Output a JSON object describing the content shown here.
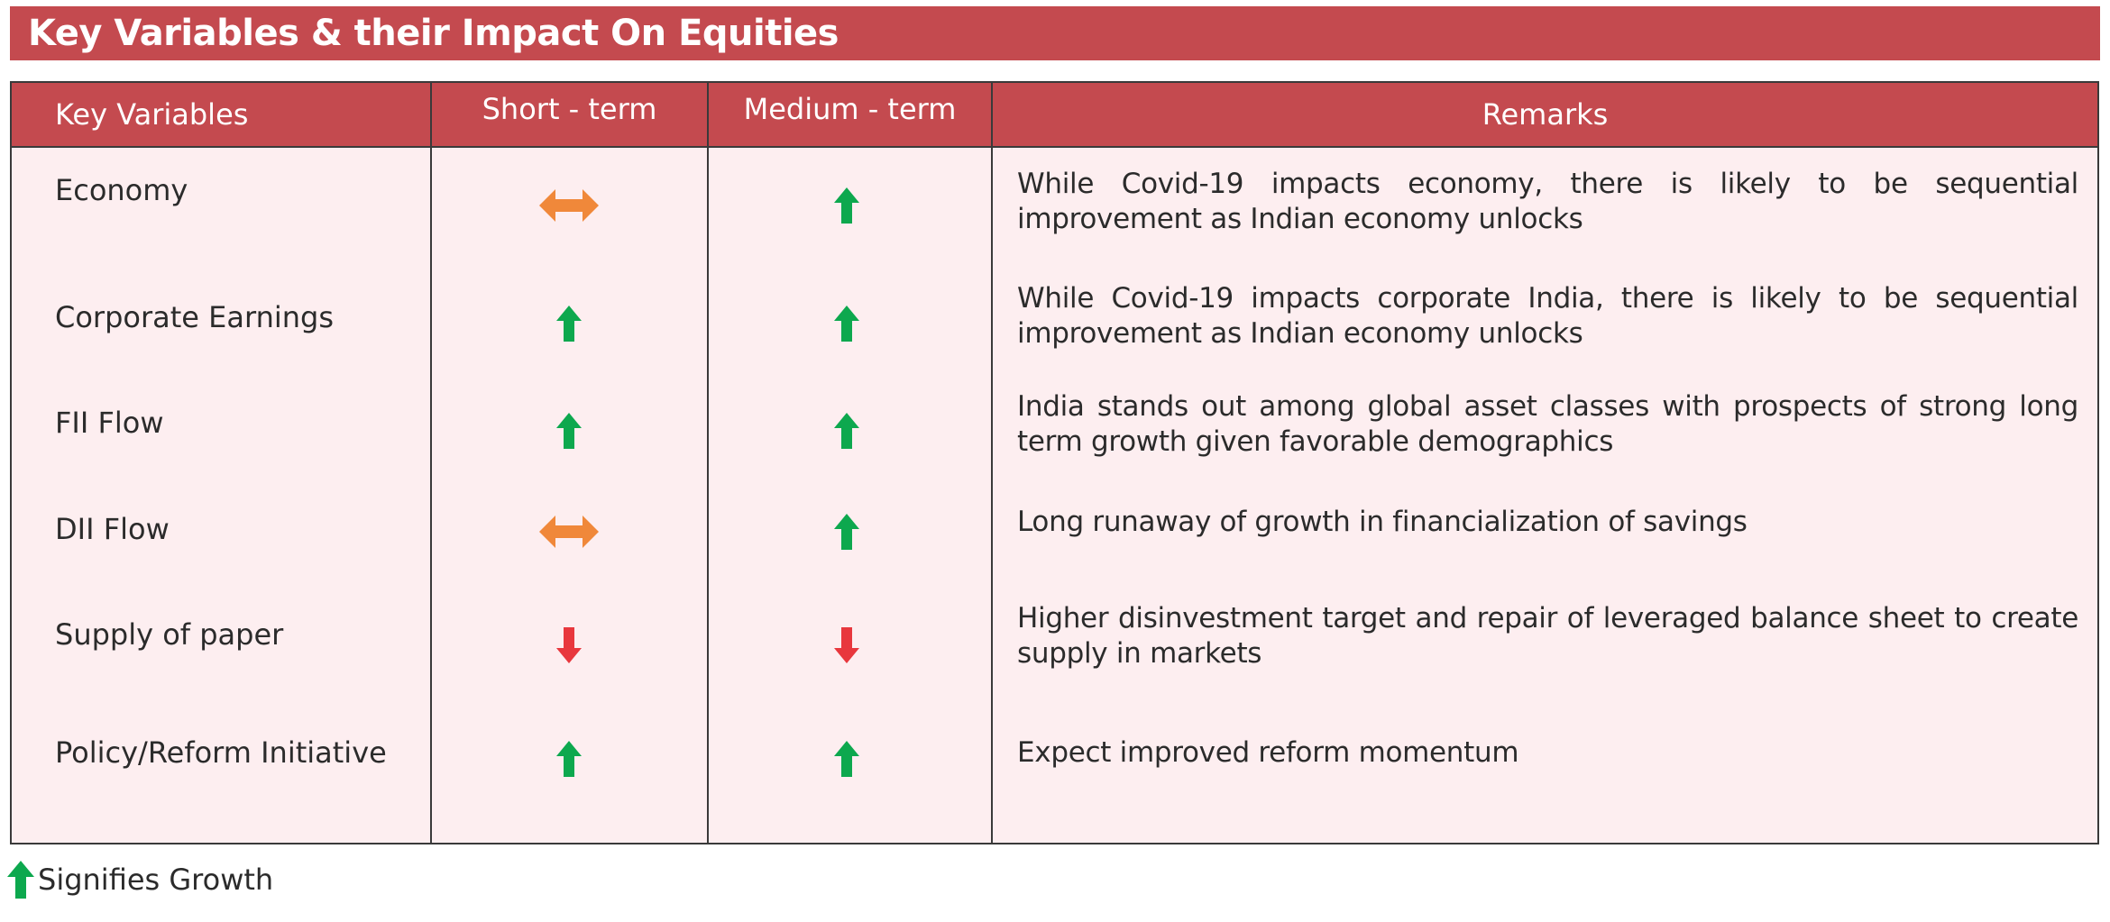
{
  "title": "Key Variables & their Impact On Equities",
  "colors": {
    "header_bg": "#c44a4f",
    "table_bg": "#fdeef0",
    "up_arrow": "#0da84e",
    "down_arrow": "#e8373d",
    "neutral_arrow": "#f0883a"
  },
  "table": {
    "headers": {
      "variable": "Key Variables",
      "short_term": "Short  - term",
      "medium_term": "Medium - term",
      "remarks": "Remarks"
    },
    "rows": [
      {
        "variable": "Economy",
        "short_term": "neutral-arrow-icon",
        "medium_term": "up-arrow-icon",
        "remark": "While Covid-19 impacts economy, there is likely to be sequential improvement as Indian economy unlocks"
      },
      {
        "variable": "Corporate Earnings",
        "short_term": "up-arrow-icon",
        "medium_term": "up-arrow-icon",
        "remark": "While Covid-19 impacts corporate India, there is likely to be sequential improvement as Indian economy unlocks"
      },
      {
        "variable": "FII Flow",
        "short_term": "up-arrow-icon",
        "medium_term": "up-arrow-icon",
        "remark": "India stands out among global asset classes with prospects of strong long term growth given favorable demographics"
      },
      {
        "variable": "DII Flow",
        "short_term": "neutral-arrow-icon",
        "medium_term": "up-arrow-icon",
        "remark": "Long runaway of growth in financialization of savings"
      },
      {
        "variable": "Supply of paper",
        "short_term": "down-arrow-icon",
        "medium_term": "down-arrow-icon",
        "remark": "Higher disinvestment target and repair of leveraged balance sheet to create supply in markets"
      },
      {
        "variable": "Policy/Reform Initiative",
        "short_term": "up-arrow-icon",
        "medium_term": "up-arrow-icon",
        "remark": "Expect improved reform momentum"
      }
    ]
  },
  "legend": {
    "icon": "up-arrow-icon",
    "label": "Signifies Growth"
  }
}
